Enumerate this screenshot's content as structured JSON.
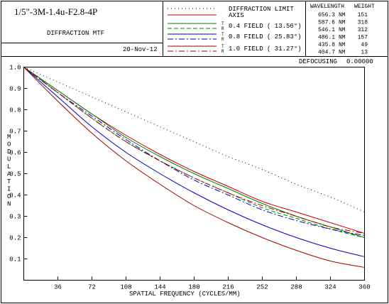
{
  "header": {
    "title": "1/5\"-3M-1.4u-F2.8-4P",
    "subtitle": "DIFFRACTION MTF",
    "date": "20-Nov-12",
    "defocusing_label": "DEFOCUSING",
    "defocusing_value": "0.00000",
    "wavelength_header": "WAVELENGTH",
    "weight_header": "WEIGHT",
    "wavelengths": [
      {
        "value": "656.3",
        "unit": "NM",
        "weight": "151"
      },
      {
        "value": "587.6",
        "unit": "NM",
        "weight": "318"
      },
      {
        "value": "546.1",
        "unit": "NM",
        "weight": "312"
      },
      {
        "value": "486.1",
        "unit": "NM",
        "weight": "157"
      },
      {
        "value": "435.8",
        "unit": "NM",
        "weight": "49"
      },
      {
        "value": "404.7",
        "unit": "NM",
        "weight": "13"
      }
    ],
    "legend": [
      {
        "label": "DIFFRACTION LIMIT",
        "color": "#000000",
        "dash": "1 4"
      },
      {
        "label": "AXIS",
        "color": "#c00000",
        "dash": ""
      },
      {
        "label": "0.4 FIELD ( 13.56°)",
        "color": "#008000",
        "dash": "",
        "t_color": "#008000",
        "r_color": "#008000",
        "r_dash": "6 3"
      },
      {
        "label": "0.8 FIELD ( 25.83°)",
        "color": "#0000c0",
        "dash": "",
        "t_color": "#0000c0",
        "r_color": "#0000c0",
        "r_dash": "8 3 2 3"
      },
      {
        "label": "1.0 FIELD ( 31.27°)",
        "color": "#a00000",
        "dash": "",
        "t_color": "#a00000",
        "r_color": "#a00000",
        "r_dash": "8 3 2 3"
      }
    ],
    "t_mark": "T",
    "r_mark": "R"
  },
  "chart_data": {
    "type": "line",
    "xlabel": "SPATIAL FREQUENCY (CYCLES/MM)",
    "ylabel": "MODULATION",
    "xlim": [
      0,
      360
    ],
    "ylim": [
      0,
      1.0
    ],
    "xticks": [
      36,
      72,
      108,
      144,
      180,
      216,
      252,
      288,
      324,
      360
    ],
    "yticks": [
      0.1,
      0.2,
      0.3,
      0.4,
      0.5,
      0.6,
      0.7,
      0.8,
      0.9,
      1.0
    ],
    "x": [
      0,
      36,
      72,
      108,
      144,
      180,
      216,
      252,
      288,
      324,
      360
    ],
    "series": [
      {
        "name": "DIFFRACTION LIMIT",
        "color": "#000000",
        "dash": "1 4",
        "values": [
          1.0,
          0.93,
          0.86,
          0.79,
          0.72,
          0.65,
          0.58,
          0.52,
          0.45,
          0.39,
          0.32
        ]
      },
      {
        "name": "AXIS",
        "color": "#c00000",
        "dash": "",
        "values": [
          1.0,
          0.89,
          0.78,
          0.68,
          0.59,
          0.51,
          0.44,
          0.37,
          0.32,
          0.27,
          0.22
        ]
      },
      {
        "name": "0.4 FIELD T",
        "color": "#008000",
        "dash": "",
        "values": [
          1.0,
          0.89,
          0.78,
          0.67,
          0.58,
          0.5,
          0.43,
          0.36,
          0.3,
          0.25,
          0.2
        ]
      },
      {
        "name": "0.4 FIELD R",
        "color": "#008000",
        "dash": "6 3",
        "values": [
          1.0,
          0.88,
          0.76,
          0.65,
          0.56,
          0.48,
          0.41,
          0.34,
          0.29,
          0.24,
          0.2
        ]
      },
      {
        "name": "0.8 FIELD T",
        "color": "#0000c0",
        "dash": "",
        "values": [
          1.0,
          0.86,
          0.72,
          0.6,
          0.5,
          0.41,
          0.33,
          0.26,
          0.2,
          0.15,
          0.11
        ]
      },
      {
        "name": "0.8 FIELD R",
        "color": "#0000c0",
        "dash": "8 3 2 3",
        "values": [
          1.0,
          0.88,
          0.77,
          0.66,
          0.56,
          0.47,
          0.4,
          0.33,
          0.28,
          0.24,
          0.21
        ]
      },
      {
        "name": "1.0 FIELD T",
        "color": "#a00000",
        "dash": "",
        "values": [
          1.0,
          0.84,
          0.69,
          0.56,
          0.45,
          0.35,
          0.27,
          0.2,
          0.14,
          0.09,
          0.06
        ]
      },
      {
        "name": "1.0 FIELD R",
        "color": "#a00000",
        "dash": "8 3 2 3",
        "values": [
          1.0,
          0.88,
          0.76,
          0.65,
          0.56,
          0.48,
          0.41,
          0.35,
          0.3,
          0.25,
          0.22
        ]
      }
    ],
    "grid": false,
    "legend_placement": "top"
  }
}
